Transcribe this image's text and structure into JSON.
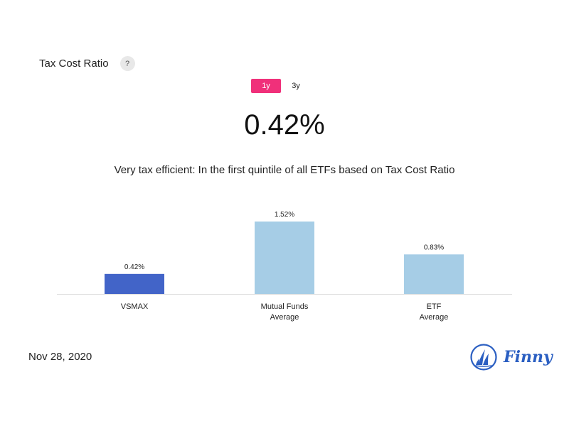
{
  "header": {
    "title": "Tax Cost Ratio",
    "help_label": "?"
  },
  "tabs": [
    {
      "label": "1y",
      "active": true
    },
    {
      "label": "3y",
      "active": false
    }
  ],
  "headline_value": "0.42%",
  "description": "Very tax efficient: In the first quintile of all ETFs based on Tax Cost Ratio",
  "chart_data": {
    "type": "bar",
    "categories": [
      [
        "VSMAX"
      ],
      [
        "Mutual Funds",
        "Average"
      ],
      [
        "ETF",
        "Average"
      ]
    ],
    "values": [
      0.42,
      1.52,
      0.83
    ],
    "data_labels": [
      "0.42%",
      "1.52%",
      "0.83%"
    ],
    "colors": [
      "#4264c8",
      "#a6cde6",
      "#a6cde6"
    ],
    "ylim": [
      0,
      1.52
    ],
    "grid": false,
    "legend": "none"
  },
  "footer": {
    "date": "Nov 28, 2020",
    "brand": "Finny",
    "brand_color": "#2b5fc2",
    "logo_icon": "finny-sail-logo"
  },
  "colors": {
    "accent": "#f0307a",
    "highlight_bar": "#4264c8",
    "comparison_bar": "#a6cde6"
  }
}
